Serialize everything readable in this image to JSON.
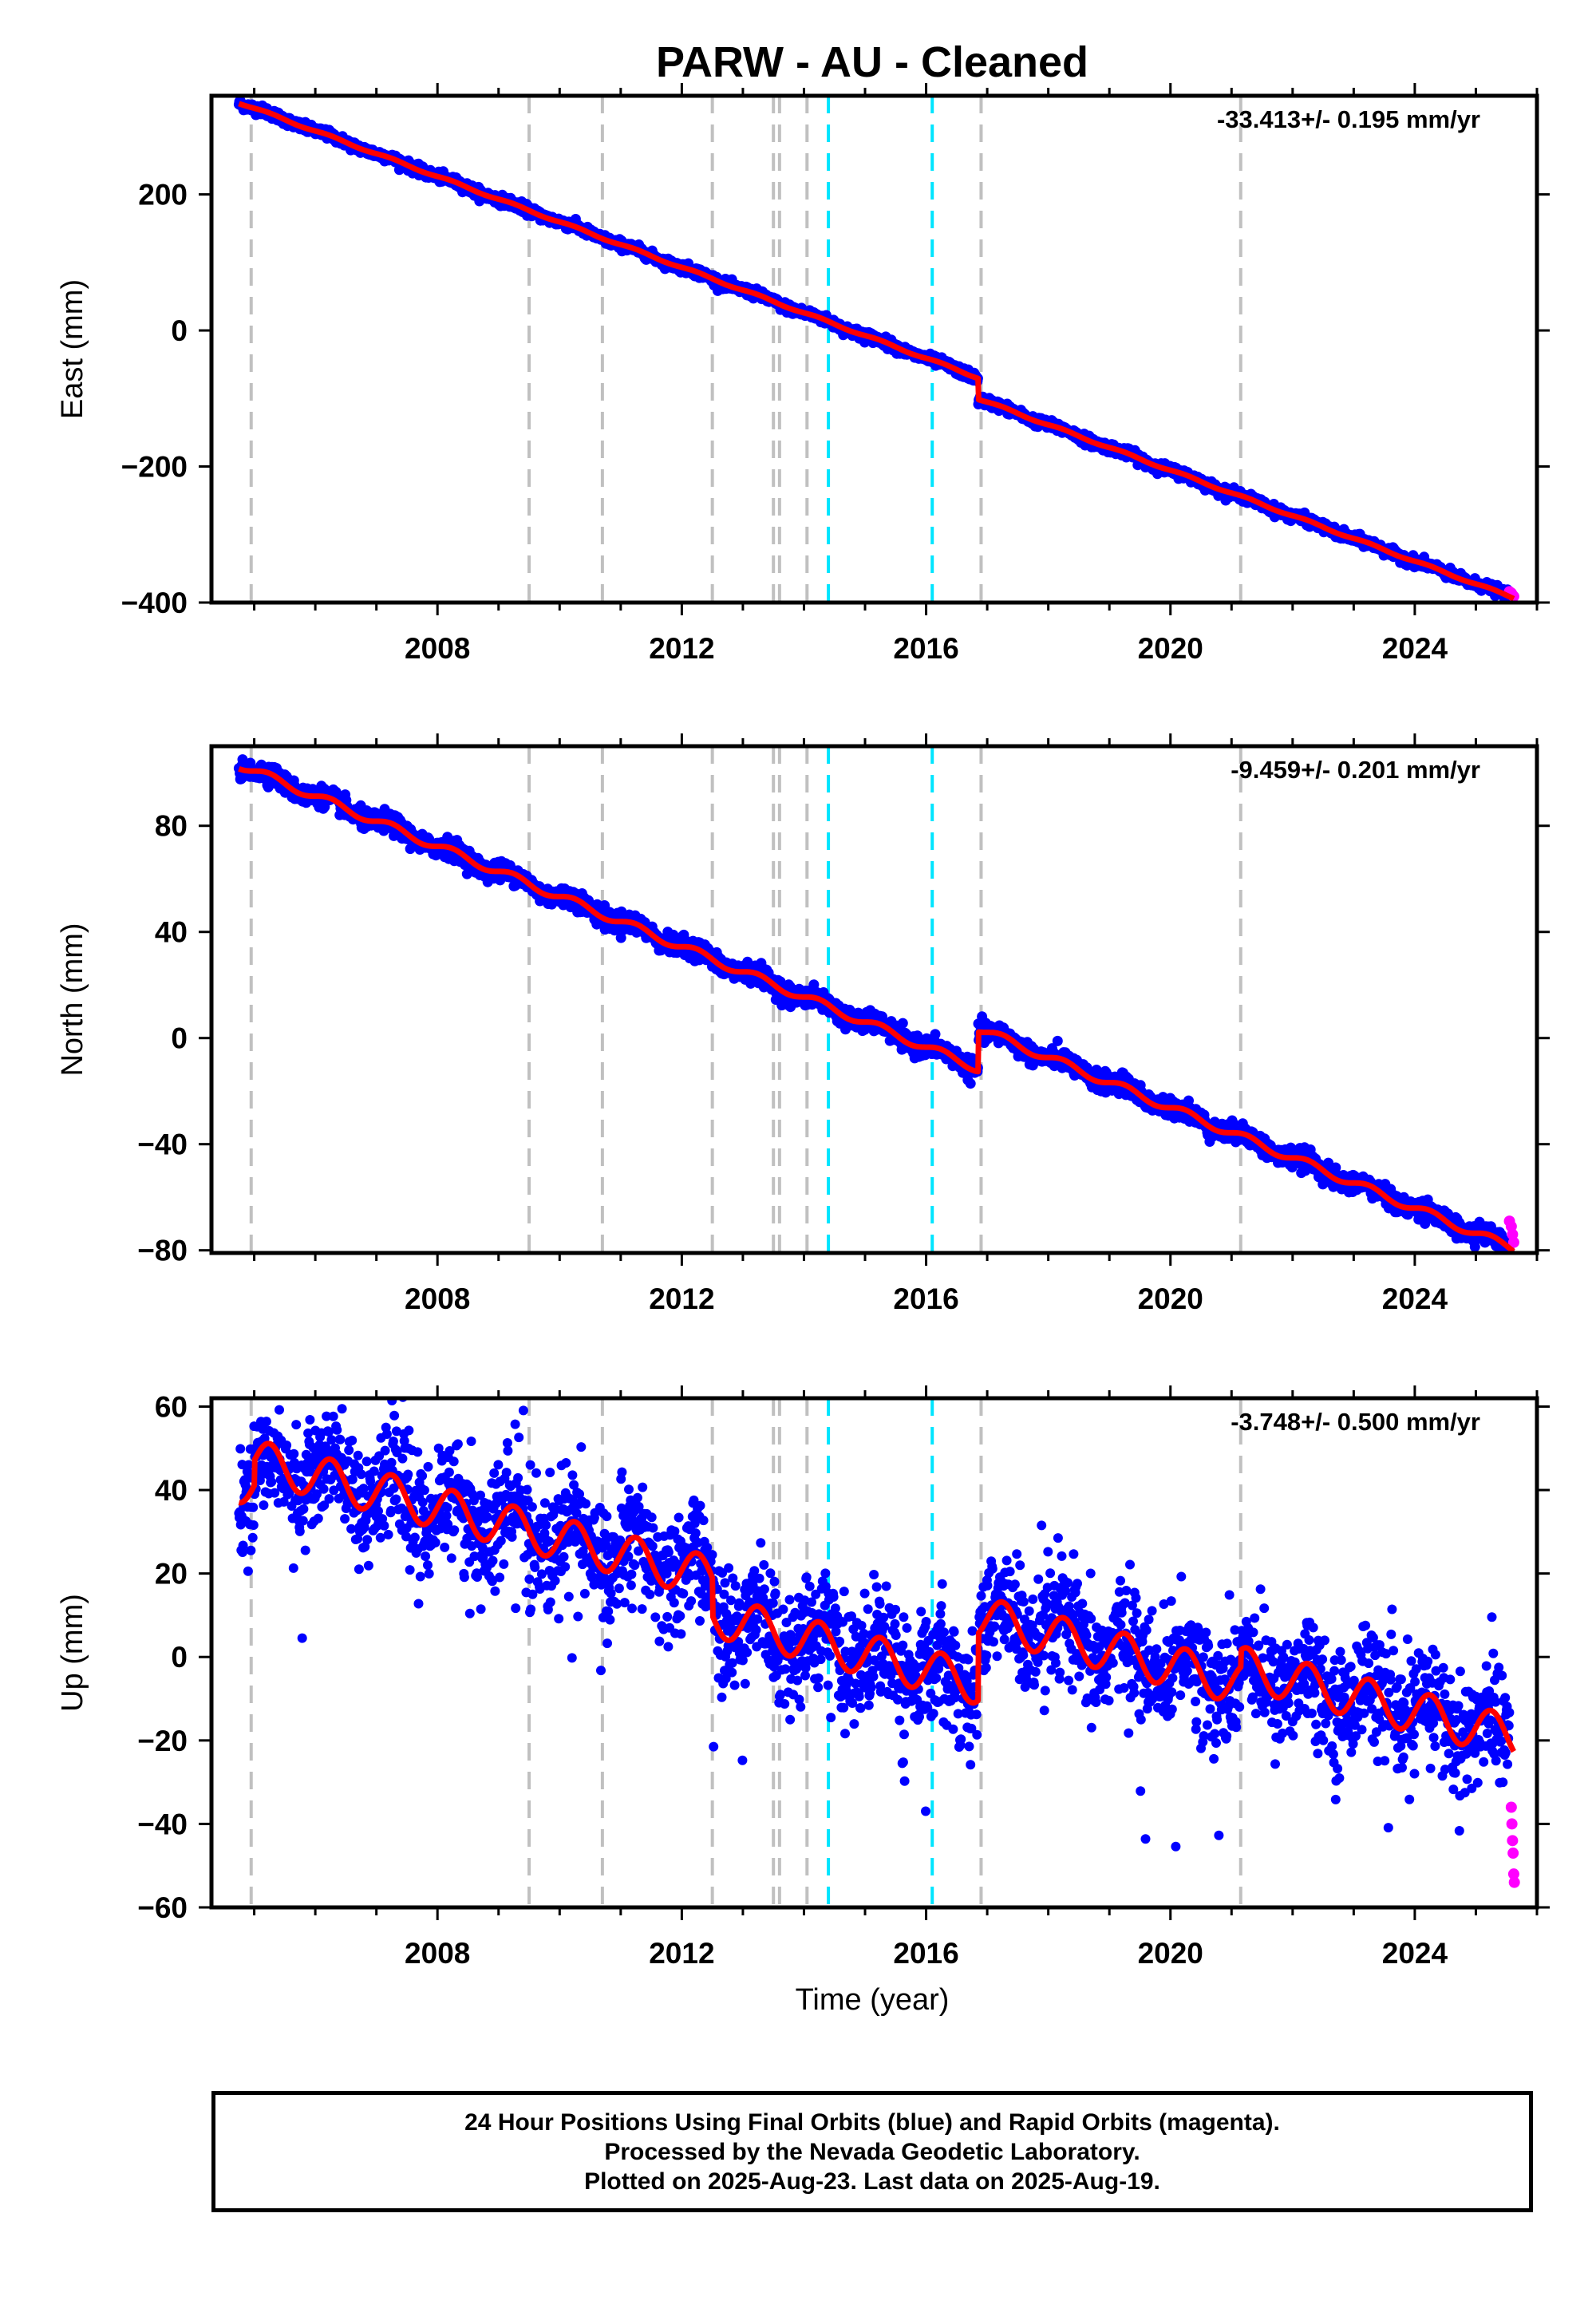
{
  "title": "PARW  - AU - Cleaned",
  "xlabel": "Time (year)",
  "footer": {
    "line1": "24 Hour Positions Using Final Orbits (blue) and Rapid Orbits (magenta).",
    "line2": "Processed by the Nevada Geodetic Laboratory.",
    "line3": "Plotted on 2025-Aug-23. Last data on 2025-Aug-19."
  },
  "colors": {
    "final": "#0000ff",
    "rapid": "#ff00ff",
    "model": "#ff0000",
    "event_gray": "#c0c0c0",
    "event_cyan": "#00e5ff"
  },
  "chart_data": [
    {
      "type": "scatter",
      "component": "East",
      "ylabel": "East (mm)",
      "rate_label": "-33.413+/- 0.195 mm/yr",
      "xlim": [
        2004.3,
        2026.0
      ],
      "ylim": [
        -400,
        345
      ],
      "xticks": [
        2008,
        2012,
        2016,
        2020,
        2024
      ],
      "yticks": [
        -400,
        -200,
        0,
        200
      ],
      "ytick_labels": [
        "−400",
        "−200",
        "0",
        "200"
      ],
      "model": {
        "start_year": 2004.75,
        "start_value": 335,
        "rate": -33.413,
        "steps": [
          {
            "year": 2016.85,
            "value": -31
          }
        ],
        "seasonal_amplitude": 1.5
      },
      "scatter_noise": 3.5,
      "series": [
        {
          "name": "Final Orbits",
          "x": [
            2004.75,
            2008.0,
            2012.0,
            2016.0,
            2016.84,
            2016.86,
            2020.0,
            2024.0,
            2025.55
          ],
          "y": [
            335,
            227,
            93,
            -40,
            -62,
            -93,
            -198,
            -332,
            -383
          ]
        },
        {
          "name": "Rapid Orbits",
          "x": [
            2025.55,
            2025.58,
            2025.6,
            2025.62
          ],
          "y": [
            -384,
            -386,
            -389,
            -391
          ]
        }
      ],
      "grid": false
    },
    {
      "type": "scatter",
      "component": "North",
      "ylabel": "North (mm)",
      "rate_label": "-9.459+/- 0.201 mm/yr",
      "xlim": [
        2004.3,
        2026.0
      ],
      "ylim": [
        -81,
        110
      ],
      "xticks": [
        2008,
        2012,
        2016,
        2020,
        2024
      ],
      "yticks": [
        -80,
        -40,
        0,
        40,
        80
      ],
      "ytick_labels": [
        "−80",
        "−40",
        "0",
        "40",
        "80"
      ],
      "model": {
        "start_year": 2004.75,
        "start_value": 103,
        "rate": -9.459,
        "steps": [
          {
            "year": 2016.85,
            "value": 15
          }
        ],
        "seasonal_amplitude": 1.5
      },
      "scatter_noise": 1.8,
      "series": [
        {
          "name": "Final Orbits",
          "x": [
            2004.75,
            2008.0,
            2012.0,
            2016.0,
            2016.84,
            2016.86,
            2020.0,
            2024.0,
            2025.55
          ],
          "y": [
            103,
            73,
            31,
            -12,
            -18,
            -3,
            -23,
            -65,
            -73
          ]
        },
        {
          "name": "Rapid Orbits",
          "x": [
            2025.55,
            2025.58,
            2025.6,
            2025.62
          ],
          "y": [
            -69,
            -71,
            -74,
            -77
          ]
        }
      ],
      "grid": false
    },
    {
      "type": "scatter",
      "component": "Up",
      "ylabel": "Up (mm)",
      "rate_label": "-3.748+/- 0.500 mm/yr",
      "xlim": [
        2004.3,
        2026.0
      ],
      "ylim": [
        -60,
        62
      ],
      "xticks": [
        2008,
        2012,
        2016,
        2020,
        2024
      ],
      "yticks": [
        -60,
        -40,
        -20,
        0,
        20,
        40,
        60
      ],
      "ytick_labels": [
        "−60",
        "−40",
        "−20",
        "0",
        "20",
        "40",
        "60"
      ],
      "model": {
        "start_year": 2004.75,
        "start_value": 42,
        "rate": -3.748,
        "steps": [
          {
            "year": 2005.0,
            "value": 6
          },
          {
            "year": 2012.5,
            "value": -9
          },
          {
            "year": 2016.85,
            "value": 16
          },
          {
            "year": 2021.15,
            "value": 4
          }
        ],
        "seasonal_amplitude": 5
      },
      "scatter_noise": 7,
      "series": [
        {
          "name": "Final Orbits",
          "x": [
            2004.75,
            2006.0,
            2008.0,
            2010.0,
            2012.0,
            2013.0,
            2016.0,
            2017.0,
            2020.0,
            2022.0,
            2024.0,
            2025.55
          ],
          "y": [
            42,
            35,
            28,
            20,
            10,
            0,
            -8,
            4,
            -8,
            -13,
            -18,
            -28
          ]
        },
        {
          "name": "Rapid Orbits",
          "x": [
            2025.58,
            2025.59,
            2025.6,
            2025.61,
            2025.62,
            2025.63
          ],
          "y": [
            -36,
            -40,
            -44,
            -47,
            -52,
            -54
          ]
        }
      ],
      "grid": false
    }
  ],
  "events": {
    "gray": [
      2004.95,
      2009.5,
      2010.7,
      2012.5,
      2013.5,
      2013.6,
      2014.05,
      2016.9,
      2021.15
    ],
    "cyan": [
      2014.4,
      2016.1
    ]
  }
}
